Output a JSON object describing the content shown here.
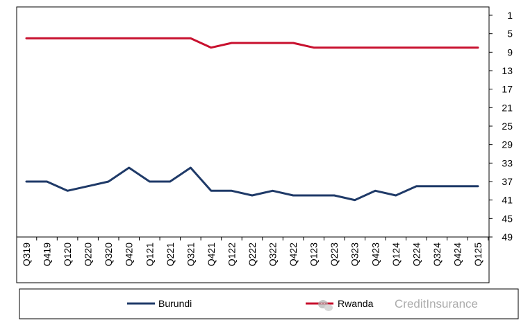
{
  "chart_data": {
    "type": "line",
    "categories": [
      "Q319",
      "Q419",
      "Q120",
      "Q220",
      "Q320",
      "Q420",
      "Q121",
      "Q221",
      "Q321",
      "Q421",
      "Q122",
      "Q222",
      "Q322",
      "Q422",
      "Q123",
      "Q223",
      "Q323",
      "Q423",
      "Q124",
      "Q224",
      "Q324",
      "Q424",
      "Q125"
    ],
    "y_ticks": [
      1,
      5,
      9,
      13,
      17,
      21,
      25,
      29,
      33,
      37,
      41,
      45,
      49
    ],
    "ylim": [
      1,
      49
    ],
    "y_inverted": true,
    "y_axis_side": "right",
    "grid": false,
    "legend_position": "bottom",
    "series": [
      {
        "name": "Burundi",
        "color": "#1f3a68",
        "values": [
          37,
          37,
          39,
          38,
          37,
          34,
          37,
          37,
          34,
          39,
          39,
          40,
          39,
          40,
          40,
          40,
          41,
          39,
          40,
          38,
          38,
          38,
          38
        ]
      },
      {
        "name": "Rwanda",
        "color": "#c8102e",
        "values": [
          6,
          6,
          6,
          6,
          6,
          6,
          6,
          6,
          6,
          8,
          7,
          7,
          7,
          7,
          8,
          8,
          8,
          8,
          8,
          8,
          8,
          8,
          8
        ]
      }
    ]
  },
  "watermark": {
    "text": "CreditInsurance",
    "icon": "wechat-icon"
  }
}
